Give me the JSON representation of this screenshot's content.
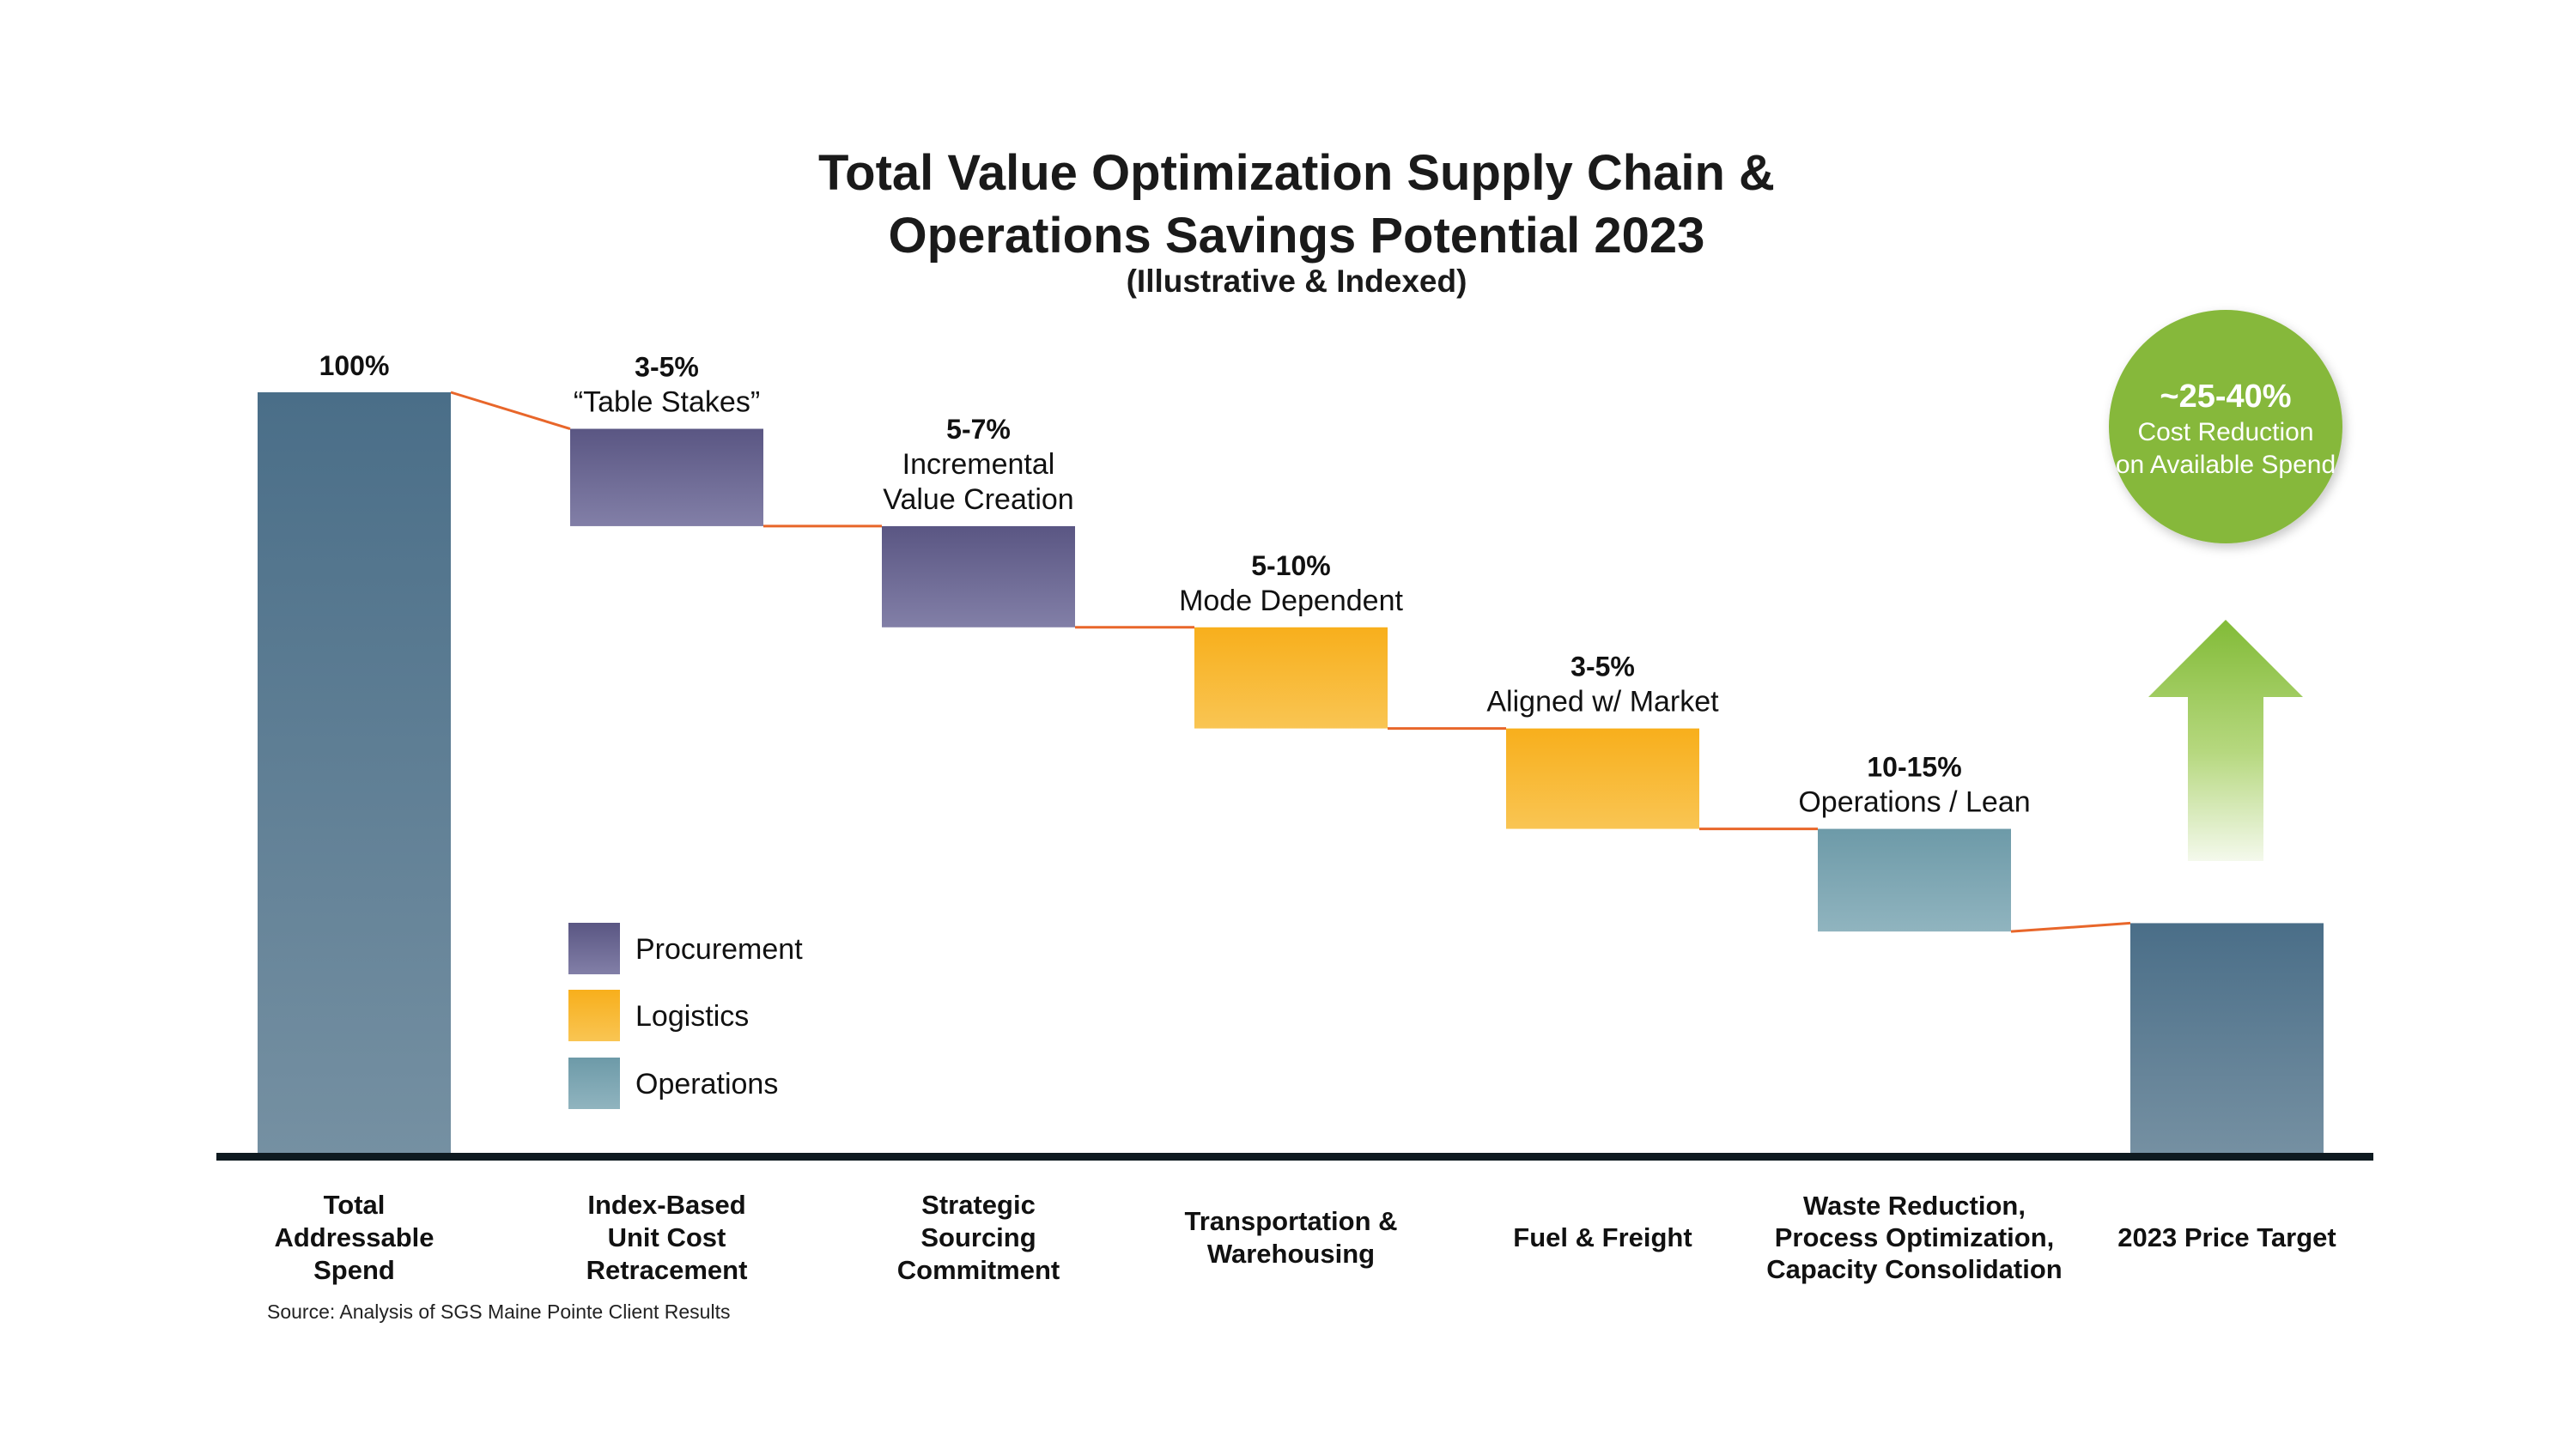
{
  "colors": {
    "procurement": "#5e5a86",
    "logistics": "#f7b21f",
    "operations": "#6f9fab",
    "total": "#4d7089",
    "connector": "#e8662a",
    "baseline": "#0e1a20",
    "badge": "#86b83a",
    "arrow": "#8cc03f"
  },
  "chart_data": {
    "type": "waterfall",
    "title_line1": "Total Value Optimization Supply Chain &",
    "title_line2": "Operations Savings Potential 2023",
    "subtitle": "(Illustrative & Indexed)",
    "source": "Source: Analysis of SGS Maine Pointe Client Results",
    "ylim": [
      0,
      100
    ],
    "bars": [
      {
        "category": [
          "Total",
          "Addressable",
          "Spend"
        ],
        "kind": "total",
        "start": 0,
        "end": 100,
        "pct_label": "100%",
        "desc": []
      },
      {
        "category": [
          "Index-Based",
          "Unit Cost",
          "Retracement"
        ],
        "kind": "procurement",
        "start": 95.2,
        "end": 82.4,
        "pct_label": "3-5%",
        "desc": [
          "“Table Stakes”"
        ]
      },
      {
        "category": [
          "Strategic",
          "Sourcing",
          "Commitment"
        ],
        "kind": "procurement",
        "start": 82.4,
        "end": 69.1,
        "pct_label": "5-7%",
        "desc": [
          "Incremental",
          "Value Creation"
        ]
      },
      {
        "category": [
          "Transportation &",
          "Warehousing"
        ],
        "kind": "logistics",
        "start": 69.1,
        "end": 55.8,
        "pct_label": "5-10%",
        "desc": [
          "Mode Dependent"
        ]
      },
      {
        "category": [
          "Fuel & Freight"
        ],
        "kind": "logistics",
        "start": 55.8,
        "end": 42.6,
        "pct_label": "3-5%",
        "desc": [
          "Aligned w/ Market"
        ]
      },
      {
        "category": [
          "Waste Reduction,",
          "Process Optimization,",
          "Capacity Consolidation"
        ],
        "kind": "operations",
        "start": 42.6,
        "end": 29.1,
        "pct_label": "10-15%",
        "desc": [
          "Operations / Lean"
        ]
      },
      {
        "category": [
          "2023 Price Target"
        ],
        "kind": "total",
        "start": 0,
        "end": 30.2,
        "pct_label": "",
        "desc": []
      }
    ],
    "legend": [
      {
        "label": "Procurement",
        "kind": "procurement"
      },
      {
        "label": "Logistics",
        "kind": "logistics"
      },
      {
        "label": "Operations",
        "kind": "operations"
      }
    ],
    "badge": {
      "main": "~25-40%",
      "line1": "Cost Reduction",
      "line2": "on Available Spend"
    }
  }
}
